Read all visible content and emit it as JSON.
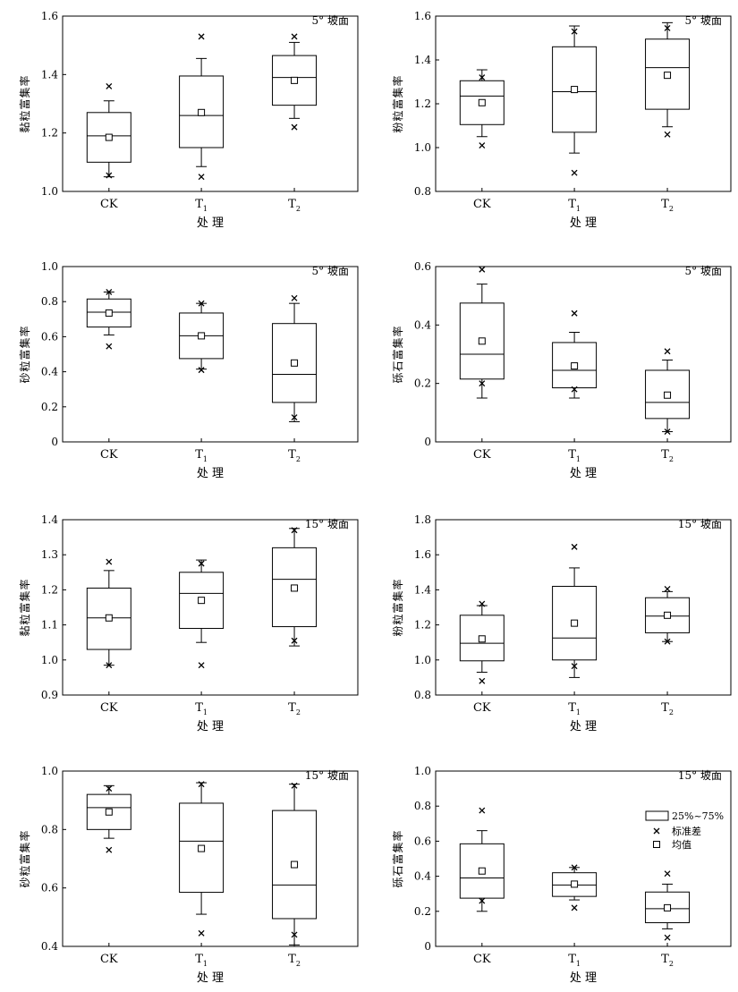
{
  "figure": {
    "xlabel": "处 理",
    "legend": {
      "box": "25%~75%",
      "sd": "标准差",
      "mean": "均值"
    }
  },
  "chart_data": [
    {
      "type": "box",
      "title": "5° 坡面",
      "ylabel": "黏粒富集率",
      "categories": [
        "CK",
        "T1",
        "T2"
      ],
      "ylim": [
        1.0,
        1.6
      ],
      "yticks": [
        "1.0",
        "1.2",
        "1.4",
        "1.6"
      ],
      "boxes": [
        {
          "q1": 1.1,
          "median": 1.19,
          "q3": 1.27,
          "whisker_low": 1.05,
          "whisker_high": 1.31,
          "mean": 1.185,
          "sd_marks": [
            1.36,
            1.055
          ]
        },
        {
          "q1": 1.15,
          "median": 1.26,
          "q3": 1.395,
          "whisker_low": 1.085,
          "whisker_high": 1.455,
          "mean": 1.27,
          "sd_marks": [
            1.53,
            1.05
          ]
        },
        {
          "q1": 1.295,
          "median": 1.39,
          "q3": 1.465,
          "whisker_low": 1.25,
          "whisker_high": 1.51,
          "mean": 1.38,
          "sd_marks": [
            1.53,
            1.22
          ]
        }
      ]
    },
    {
      "type": "box",
      "title": "5° 坡面",
      "ylabel": "粉粒富集率",
      "categories": [
        "CK",
        "T1",
        "T2"
      ],
      "ylim": [
        0.8,
        1.6
      ],
      "yticks": [
        "0.8",
        "1.0",
        "1.2",
        "1.4",
        "1.6"
      ],
      "boxes": [
        {
          "q1": 1.105,
          "median": 1.235,
          "q3": 1.305,
          "whisker_low": 1.05,
          "whisker_high": 1.355,
          "mean": 1.205,
          "sd_marks": [
            1.32,
            1.01
          ]
        },
        {
          "q1": 1.07,
          "median": 1.255,
          "q3": 1.46,
          "whisker_low": 0.975,
          "whisker_high": 1.555,
          "mean": 1.265,
          "sd_marks": [
            1.53,
            0.885
          ]
        },
        {
          "q1": 1.175,
          "median": 1.365,
          "q3": 1.495,
          "whisker_low": 1.095,
          "whisker_high": 1.57,
          "mean": 1.33,
          "sd_marks": [
            1.545,
            1.06
          ]
        }
      ]
    },
    {
      "type": "box",
      "title": "5° 坡面",
      "ylabel": "砂粒富集率",
      "categories": [
        "CK",
        "T1",
        "T2"
      ],
      "ylim": [
        0.0,
        1.0
      ],
      "yticks": [
        "0",
        "0.2",
        "0.4",
        "0.6",
        "0.8",
        "1.0"
      ],
      "boxes": [
        {
          "q1": 0.655,
          "median": 0.74,
          "q3": 0.815,
          "whisker_low": 0.61,
          "whisker_high": 0.855,
          "mean": 0.735,
          "sd_marks": [
            0.855,
            0.545
          ]
        },
        {
          "q1": 0.475,
          "median": 0.605,
          "q3": 0.735,
          "whisker_low": 0.415,
          "whisker_high": 0.79,
          "mean": 0.605,
          "sd_marks": [
            0.79,
            0.41
          ]
        },
        {
          "q1": 0.225,
          "median": 0.385,
          "q3": 0.675,
          "whisker_low": 0.115,
          "whisker_high": 0.79,
          "mean": 0.45,
          "sd_marks": [
            0.82,
            0.14
          ]
        }
      ]
    },
    {
      "type": "box",
      "title": "5° 坡面",
      "ylabel": "砾石富集率",
      "categories": [
        "CK",
        "T1",
        "T2"
      ],
      "ylim": [
        0.0,
        0.6
      ],
      "yticks": [
        "0",
        "0.2",
        "0.4",
        "0.6"
      ],
      "boxes": [
        {
          "q1": 0.215,
          "median": 0.3,
          "q3": 0.475,
          "whisker_low": 0.15,
          "whisker_high": 0.54,
          "mean": 0.345,
          "sd_marks": [
            0.59,
            0.2
          ]
        },
        {
          "q1": 0.185,
          "median": 0.245,
          "q3": 0.34,
          "whisker_low": 0.15,
          "whisker_high": 0.375,
          "mean": 0.26,
          "sd_marks": [
            0.44,
            0.18
          ]
        },
        {
          "q1": 0.08,
          "median": 0.135,
          "q3": 0.245,
          "whisker_low": 0.035,
          "whisker_high": 0.28,
          "mean": 0.16,
          "sd_marks": [
            0.31,
            0.035
          ]
        }
      ]
    },
    {
      "type": "box",
      "title": "15° 坡面",
      "ylabel": "黏粒富集率",
      "categories": [
        "CK",
        "T1",
        "T2"
      ],
      "ylim": [
        0.9,
        1.4
      ],
      "yticks": [
        "0.9",
        "1.0",
        "1.1",
        "1.2",
        "1.3",
        "1.4"
      ],
      "boxes": [
        {
          "q1": 1.03,
          "median": 1.12,
          "q3": 1.205,
          "whisker_low": 0.985,
          "whisker_high": 1.255,
          "mean": 1.12,
          "sd_marks": [
            1.28,
            0.985
          ]
        },
        {
          "q1": 1.09,
          "median": 1.19,
          "q3": 1.25,
          "whisker_low": 1.05,
          "whisker_high": 1.285,
          "mean": 1.17,
          "sd_marks": [
            1.275,
            0.985
          ]
        },
        {
          "q1": 1.095,
          "median": 1.23,
          "q3": 1.32,
          "whisker_low": 1.04,
          "whisker_high": 1.375,
          "mean": 1.205,
          "sd_marks": [
            1.37,
            1.055
          ]
        }
      ]
    },
    {
      "type": "box",
      "title": "15° 坡面",
      "ylabel": "粉粒富集率",
      "categories": [
        "CK",
        "T1",
        "T2"
      ],
      "ylim": [
        0.8,
        1.8
      ],
      "yticks": [
        "0.8",
        "1.0",
        "1.2",
        "1.4",
        "1.6",
        "1.8"
      ],
      "boxes": [
        {
          "q1": 0.995,
          "median": 1.095,
          "q3": 1.255,
          "whisker_low": 0.93,
          "whisker_high": 1.31,
          "mean": 1.12,
          "sd_marks": [
            1.32,
            0.88
          ]
        },
        {
          "q1": 1.0,
          "median": 1.125,
          "q3": 1.42,
          "whisker_low": 0.9,
          "whisker_high": 1.525,
          "mean": 1.21,
          "sd_marks": [
            1.645,
            0.965
          ]
        },
        {
          "q1": 1.155,
          "median": 1.25,
          "q3": 1.355,
          "whisker_low": 1.105,
          "whisker_high": 1.39,
          "mean": 1.255,
          "sd_marks": [
            1.405,
            1.105
          ]
        }
      ]
    },
    {
      "type": "box",
      "title": "15° 坡面",
      "ylabel": "砂粒富集率",
      "categories": [
        "CK",
        "T1",
        "T2"
      ],
      "ylim": [
        0.4,
        1.0
      ],
      "yticks": [
        "0.4",
        "0.6",
        "0.8",
        "1.0"
      ],
      "boxes": [
        {
          "q1": 0.8,
          "median": 0.875,
          "q3": 0.92,
          "whisker_low": 0.77,
          "whisker_high": 0.95,
          "mean": 0.86,
          "sd_marks": [
            0.94,
            0.73
          ]
        },
        {
          "q1": 0.585,
          "median": 0.76,
          "q3": 0.89,
          "whisker_low": 0.51,
          "whisker_high": 0.96,
          "mean": 0.735,
          "sd_marks": [
            0.955,
            0.445
          ]
        },
        {
          "q1": 0.495,
          "median": 0.61,
          "q3": 0.865,
          "whisker_low": 0.405,
          "whisker_high": 0.955,
          "mean": 0.68,
          "sd_marks": [
            0.95,
            0.44
          ]
        }
      ]
    },
    {
      "type": "box",
      "title": "15° 坡面",
      "ylabel": "砾石富集率",
      "categories": [
        "CK",
        "T1",
        "T2"
      ],
      "ylim": [
        0.0,
        1.0
      ],
      "yticks": [
        "0",
        "0.2",
        "0.4",
        "0.6",
        "0.8",
        "1.0"
      ],
      "boxes": [
        {
          "q1": 0.275,
          "median": 0.39,
          "q3": 0.585,
          "whisker_low": 0.2,
          "whisker_high": 0.66,
          "mean": 0.43,
          "sd_marks": [
            0.775,
            0.26
          ]
        },
        {
          "q1": 0.285,
          "median": 0.35,
          "q3": 0.42,
          "whisker_low": 0.265,
          "whisker_high": 0.45,
          "mean": 0.355,
          "sd_marks": [
            0.45,
            0.22
          ]
        },
        {
          "q1": 0.135,
          "median": 0.215,
          "q3": 0.31,
          "whisker_low": 0.1,
          "whisker_high": 0.355,
          "mean": 0.22,
          "sd_marks": [
            0.415,
            0.05
          ]
        }
      ]
    }
  ]
}
